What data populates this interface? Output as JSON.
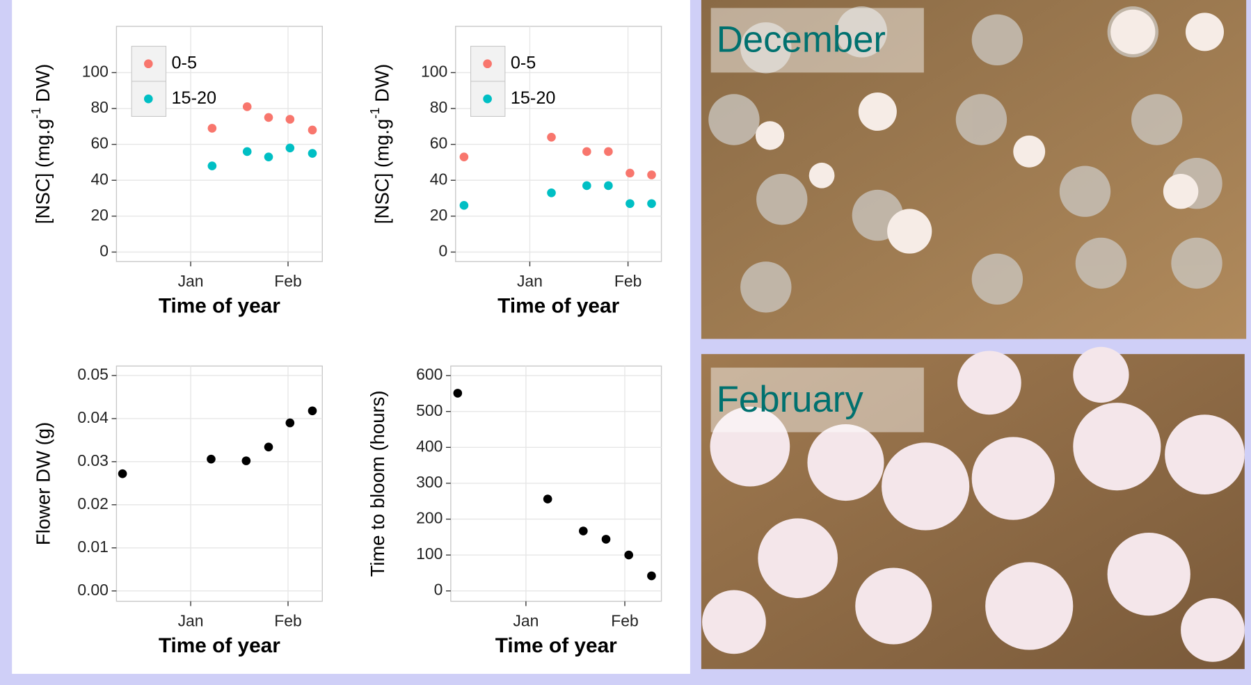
{
  "chart_data": [
    {
      "type": "scatter",
      "x_label": "Time of year",
      "y_label": {
        "text": "[NSC] (mg.g",
        "sup": "-1",
        "suffix": " DW)"
      },
      "x": [
        1.22,
        1.58,
        1.8,
        2.02,
        2.25
      ],
      "series": [
        {
          "name": "0-5",
          "color": "#F8766D",
          "values": [
            69,
            81,
            75,
            74,
            68
          ]
        },
        {
          "name": "15-20",
          "color": "#00BFC4",
          "values": [
            48,
            56,
            53,
            58,
            55
          ]
        }
      ],
      "xlim": [
        0.238,
        2.352
      ],
      "xticks": [
        {
          "value": 1,
          "label": "Jan"
        },
        {
          "value": 2,
          "label": "Feb"
        }
      ],
      "ylim": [
        -5.3,
        125.8
      ],
      "yticks": [
        0,
        20,
        40,
        60,
        80,
        100
      ],
      "grid": true,
      "legend": "top-left"
    },
    {
      "type": "scatter",
      "x_label": "Time of year",
      "y_label": {
        "text": "[NSC] (mg.g",
        "sup": "-1",
        "suffix": " DW)"
      },
      "x": [
        0.33,
        1.22,
        1.58,
        1.8,
        2.02,
        2.24
      ],
      "series": [
        {
          "name": "0-5",
          "color": "#F8766D",
          "values": [
            53,
            64,
            56,
            56,
            44,
            43
          ]
        },
        {
          "name": "15-20",
          "color": "#00BFC4",
          "values": [
            26,
            33,
            37,
            37,
            27,
            27
          ]
        }
      ],
      "xlim": [
        0.244,
        2.34
      ],
      "xticks": [
        {
          "value": 1,
          "label": "Jan"
        },
        {
          "value": 2,
          "label": "Feb"
        }
      ],
      "ylim": [
        -5.3,
        125.8
      ],
      "yticks": [
        0,
        20,
        40,
        60,
        80,
        100
      ],
      "grid": true,
      "legend": "top-left"
    },
    {
      "type": "scatter",
      "x_label": "Time of year",
      "y_label": "Flower DW (g)",
      "x": [
        0.3,
        1.21,
        1.57,
        1.8,
        2.02,
        2.25
      ],
      "values": [
        0.0272,
        0.0306,
        0.0302,
        0.0334,
        0.039,
        0.0418
      ],
      "color": "#000000",
      "xlim": [
        0.238,
        2.352
      ],
      "xticks": [
        {
          "value": 1,
          "label": "Jan"
        },
        {
          "value": 2,
          "label": "Feb"
        }
      ],
      "ylim": [
        -0.0024,
        0.0522
      ],
      "yticks": [
        {
          "value": 0,
          "label": "0.00"
        },
        {
          "value": 0.01,
          "label": "0.01"
        },
        {
          "value": 0.02,
          "label": "0.02"
        },
        {
          "value": 0.03,
          "label": "0.03"
        },
        {
          "value": 0.04,
          "label": "0.04"
        },
        {
          "value": 0.05,
          "label": "0.05"
        }
      ],
      "grid": true
    },
    {
      "type": "scatter",
      "x_label": "Time of year",
      "y_label": "Time to bloom (hours)",
      "x": [
        0.31,
        1.22,
        1.58,
        1.81,
        2.04,
        2.27
      ],
      "values": [
        551,
        256,
        167,
        144,
        100,
        42
      ],
      "color": "#000000",
      "xlim": [
        0.24,
        2.37
      ],
      "xticks": [
        {
          "value": 1,
          "label": "Jan"
        },
        {
          "value": 2,
          "label": "Feb"
        }
      ],
      "ylim": [
        -28.9,
        626.7
      ],
      "yticks": [
        0,
        100,
        200,
        300,
        400,
        500,
        600
      ],
      "grid": true
    }
  ],
  "photos": [
    {
      "label": "December"
    },
    {
      "label": "February"
    }
  ]
}
